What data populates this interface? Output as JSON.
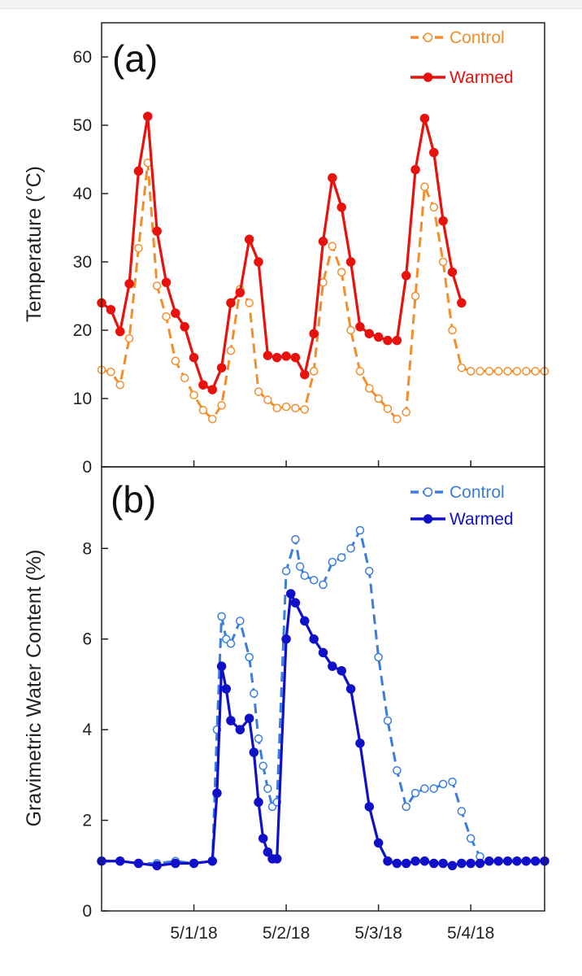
{
  "chart_data": [
    {
      "type": "line",
      "panel_label": "(a)",
      "ylabel": "Temperature (°C)",
      "ylim": [
        0,
        65
      ],
      "yticks": [
        "0",
        "10",
        "20",
        "30",
        "40",
        "50",
        "60"
      ],
      "x_range_days": [
        -1,
        3.8
      ],
      "legend": [
        {
          "name": "Control",
          "color": "#f28e2b"
        },
        {
          "name": "Warmed",
          "color": "#e8120c"
        }
      ],
      "series": [
        {
          "name": "Control",
          "color": "#f28e2b",
          "style": "dashed-open-circle",
          "x": [
            -1.0,
            -0.9,
            -0.8,
            -0.7,
            -0.6,
            -0.5,
            -0.4,
            -0.3,
            -0.2,
            -0.1,
            0.0,
            0.1,
            0.2,
            0.3,
            0.4,
            0.5,
            0.6,
            0.7,
            0.8,
            0.9,
            1.0,
            1.1,
            1.2,
            1.3,
            1.4,
            1.5,
            1.6,
            1.7,
            1.8,
            1.9,
            2.0,
            2.1,
            2.2,
            2.3,
            2.4,
            2.5,
            2.6,
            2.7,
            2.8,
            2.9,
            3.0,
            3.1,
            3.2,
            3.3,
            3.4,
            3.5,
            3.6,
            3.7,
            3.8
          ],
          "y": [
            14.2,
            13.9,
            12.0,
            18.8,
            32.0,
            44.5,
            26.5,
            22.0,
            15.5,
            13.0,
            10.5,
            8.3,
            7.0,
            9.0,
            17.0,
            26.0,
            24.0,
            11.0,
            9.8,
            8.6,
            8.8,
            8.6,
            8.4,
            14.0,
            27.0,
            32.3,
            28.5,
            20.0,
            14.0,
            11.5,
            10.0,
            8.5,
            7.0,
            8.0,
            25.0,
            41.0,
            38.0,
            30.0,
            20.0,
            14.5,
            14.0,
            14.0,
            14.0,
            14.0,
            14.0,
            14.0,
            14.0,
            14.0,
            14.0
          ]
        },
        {
          "name": "Warmed",
          "color": "#e8120c",
          "style": "solid-filled-circle",
          "x": [
            -1.0,
            -0.9,
            -0.8,
            -0.7,
            -0.6,
            -0.5,
            -0.4,
            -0.3,
            -0.2,
            -0.1,
            0.0,
            0.1,
            0.2,
            0.3,
            0.4,
            0.5,
            0.6,
            0.7,
            0.8,
            0.9,
            1.0,
            1.1,
            1.2,
            1.3,
            1.4,
            1.5,
            1.6,
            1.7,
            1.8,
            1.9,
            2.0,
            2.1,
            2.2,
            2.3,
            2.4,
            2.5,
            2.6,
            2.7,
            2.8,
            2.9
          ],
          "y": [
            24.0,
            23.0,
            19.8,
            26.8,
            43.3,
            51.3,
            34.5,
            27.0,
            22.5,
            20.5,
            16.0,
            12.0,
            11.3,
            14.5,
            24.0,
            25.5,
            33.3,
            30.0,
            16.3,
            16.0,
            16.2,
            16.0,
            13.5,
            19.5,
            33.0,
            42.3,
            38.0,
            30.0,
            20.5,
            19.5,
            19.0,
            18.5,
            18.5,
            28.0,
            43.5,
            51.0,
            46.0,
            36.0,
            28.5,
            24.0
          ]
        }
      ]
    },
    {
      "type": "line",
      "panel_label": "(b)",
      "ylabel": "Gravimetric Water Content (%)",
      "ylim": [
        0,
        9.8
      ],
      "yticks": [
        "0",
        "2",
        "4",
        "6",
        "8"
      ],
      "x_range_days": [
        -1,
        3.8
      ],
      "xlabels": [
        "5/1/18",
        "5/2/18",
        "5/3/18",
        "5/4/18"
      ],
      "xticks_days": [
        0,
        1,
        2,
        3
      ],
      "legend": [
        {
          "name": "Control",
          "color": "#3b7ddd"
        },
        {
          "name": "Warmed",
          "color": "#1010c8"
        }
      ],
      "series": [
        {
          "name": "Control",
          "color": "#3b7ddd",
          "style": "dashed-open-circle",
          "x": [
            -1.0,
            -0.8,
            -0.6,
            -0.4,
            -0.2,
            0.0,
            0.2,
            0.25,
            0.3,
            0.35,
            0.4,
            0.5,
            0.6,
            0.65,
            0.7,
            0.75,
            0.8,
            0.85,
            0.9,
            1.0,
            1.1,
            1.15,
            1.2,
            1.3,
            1.4,
            1.5,
            1.6,
            1.7,
            1.8,
            1.9,
            2.0,
            2.1,
            2.2,
            2.3,
            2.4,
            2.5,
            2.6,
            2.7,
            2.8,
            2.9,
            3.0,
            3.1,
            3.2,
            3.3,
            3.4,
            3.5,
            3.6,
            3.7,
            3.8
          ],
          "y": [
            1.1,
            1.1,
            1.05,
            1.05,
            1.1,
            1.05,
            1.1,
            4.0,
            6.5,
            6.0,
            5.9,
            6.4,
            5.6,
            4.8,
            3.8,
            3.2,
            2.7,
            2.3,
            2.4,
            7.5,
            8.2,
            7.6,
            7.4,
            7.3,
            7.2,
            7.7,
            7.8,
            8.0,
            8.4,
            7.5,
            5.6,
            4.2,
            3.1,
            2.3,
            2.6,
            2.7,
            2.7,
            2.8,
            2.85,
            2.2,
            1.6,
            1.2,
            1.1,
            1.1,
            1.1,
            1.1,
            1.1,
            1.1,
            1.1
          ]
        },
        {
          "name": "Warmed",
          "color": "#1010c8",
          "style": "solid-filled-circle",
          "x": [
            -1.0,
            -0.8,
            -0.6,
            -0.4,
            -0.2,
            0.0,
            0.2,
            0.25,
            0.3,
            0.35,
            0.4,
            0.5,
            0.6,
            0.65,
            0.7,
            0.75,
            0.8,
            0.85,
            0.9,
            1.0,
            1.05,
            1.1,
            1.2,
            1.3,
            1.4,
            1.5,
            1.6,
            1.7,
            1.8,
            1.9,
            2.0,
            2.1,
            2.2,
            2.3,
            2.4,
            2.5,
            2.6,
            2.7,
            2.8,
            2.9,
            3.0,
            3.1,
            3.2,
            3.3,
            3.4,
            3.5,
            3.6,
            3.7,
            3.8
          ],
          "y": [
            1.1,
            1.1,
            1.05,
            1.0,
            1.05,
            1.05,
            1.1,
            2.6,
            5.4,
            4.9,
            4.2,
            4.0,
            4.25,
            3.5,
            2.4,
            1.6,
            1.3,
            1.15,
            1.15,
            6.0,
            7.0,
            6.8,
            6.4,
            6.0,
            5.7,
            5.4,
            5.3,
            4.9,
            3.7,
            2.3,
            1.5,
            1.1,
            1.05,
            1.05,
            1.1,
            1.1,
            1.05,
            1.05,
            1.0,
            1.05,
            1.05,
            1.05,
            1.1,
            1.1,
            1.1,
            1.1,
            1.1,
            1.1,
            1.1
          ]
        }
      ]
    }
  ]
}
